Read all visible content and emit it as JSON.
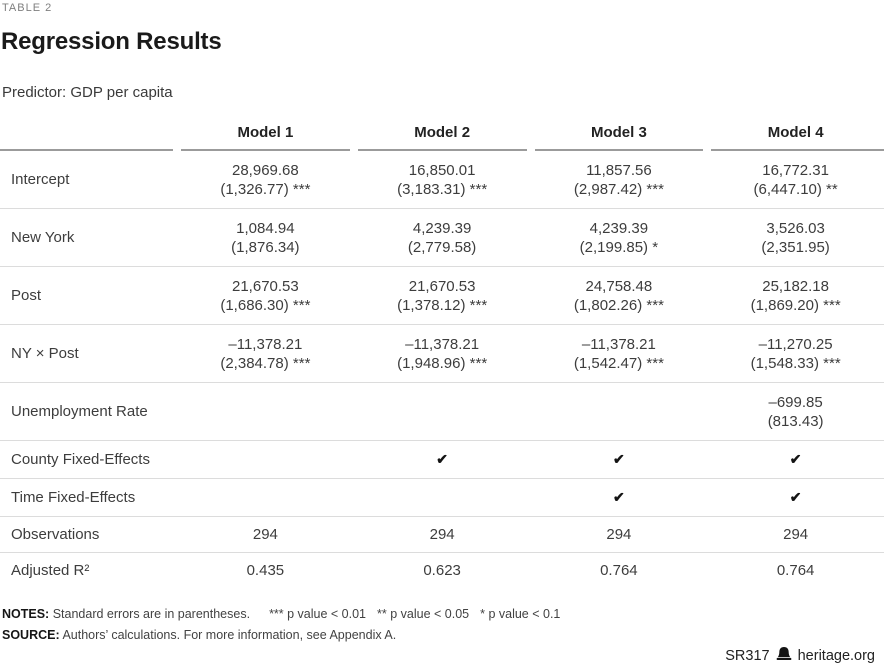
{
  "eyebrow": "TABLE 2",
  "title": "Regression Results",
  "predictor": "Predictor: GDP per capita",
  "table": {
    "columns": [
      "Model 1",
      "Model 2",
      "Model 3",
      "Model 4"
    ],
    "check_glyph": "✔",
    "rows": [
      {
        "label": "Intercept",
        "type": "coef",
        "cells": [
          [
            "28,969.68",
            "(1,326.77) ***"
          ],
          [
            "16,850.01",
            "(3,183.31) ***"
          ],
          [
            "11,857.56",
            "(2,987.42) ***"
          ],
          [
            "16,772.31",
            "(6,447.10) **"
          ]
        ]
      },
      {
        "label": "New York",
        "type": "coef",
        "cells": [
          [
            "1,084.94",
            "(1,876.34)"
          ],
          [
            "4,239.39",
            "(2,779.58)"
          ],
          [
            "4,239.39",
            "(2,199.85) *"
          ],
          [
            "3,526.03",
            "(2,351.95)"
          ]
        ]
      },
      {
        "label": "Post",
        "type": "coef",
        "cells": [
          [
            "21,670.53",
            "(1,686.30) ***"
          ],
          [
            "21,670.53",
            "(1,378.12) ***"
          ],
          [
            "24,758.48",
            "(1,802.26) ***"
          ],
          [
            "25,182.18",
            "(1,869.20) ***"
          ]
        ]
      },
      {
        "label": "NY × Post",
        "type": "coef",
        "cells": [
          [
            "–11,378.21",
            "(2,384.78) ***"
          ],
          [
            "–11,378.21",
            "(1,948.96) ***"
          ],
          [
            "–11,378.21",
            "(1,542.47) ***"
          ],
          [
            "–11,270.25",
            "(1,548.33) ***"
          ]
        ]
      },
      {
        "label": "Unemployment Rate",
        "type": "coef",
        "cells": [
          [
            "",
            ""
          ],
          [
            "",
            ""
          ],
          [
            "",
            ""
          ],
          [
            "–699.85",
            "(813.43)"
          ]
        ]
      },
      {
        "label": "County Fixed-Effects",
        "type": "check",
        "cells": [
          false,
          true,
          true,
          true
        ]
      },
      {
        "label": "Time Fixed-Effects",
        "type": "check",
        "cells": [
          false,
          false,
          true,
          true
        ]
      },
      {
        "label": "Observations",
        "type": "plain",
        "cells": [
          "294",
          "294",
          "294",
          "294"
        ]
      },
      {
        "label": "Adjusted R²",
        "type": "plain",
        "cells": [
          "0.435",
          "0.623",
          "0.764",
          "0.764"
        ]
      }
    ]
  },
  "notes": {
    "label": "NOTES:",
    "segments": [
      "Standard errors are in parentheses.",
      "*** p value < 0.01",
      "** p value < 0.05",
      "* p value < 0.1"
    ]
  },
  "source": {
    "label": "SOURCE:",
    "text": "Authors’ calculations. For more information, see Appendix A."
  },
  "footer": {
    "report_id": "SR317",
    "site": "heritage.org"
  },
  "colors": {
    "title": "#1a1a1a",
    "body_text": "#3d3d3d",
    "eyebrow": "#7f7f7f",
    "header_rule": "#9b9b9b",
    "row_rule": "#dcdcdc"
  }
}
